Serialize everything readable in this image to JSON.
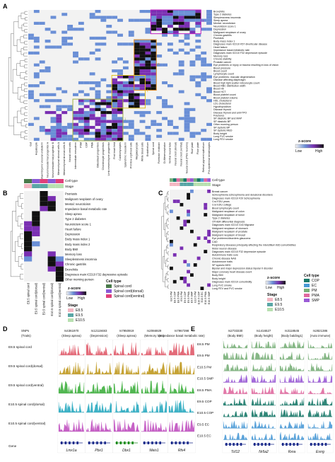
{
  "panels": {
    "A": {
      "letter": "A",
      "columns": [
        "Gut",
        "Hepatocyte",
        "Extraembryonic visceral endoderm",
        "Neuromesodermal progenitor A",
        "Neuromesodermal progenitor B",
        "Mesenchymal stromal cells A",
        "Mesenchymal stromal cells B",
        "Neural crest cells",
        "Intermediate mesoderm",
        "PSM",
        "COP",
        "PMA",
        "Osteoblast progenitors",
        "Chondrocyte progenitors",
        "Limb mesenchyme progenitor",
        "First heart field",
        "Cardiomyocytes",
        "Splanchnic mesoderm",
        "Primitive erythroid cells",
        "Megakaryocyte",
        "White blood cells",
        "Endothelium",
        "Spinal cord",
        "Forebrain midbrain",
        "Di-Mesencephalon",
        "Ventral neural tube",
        "Neural crest (dorsal)",
        "Neural crest (ventral)",
        "Neural crest (PNS neurons)",
        "Roof plate",
        "Floor plate",
        "Retinal pigment epithelium",
        "Pre-epidermal keratinocytes"
      ],
      "rows": [
        "Bronchitis",
        "Type 2 diabetes",
        "Sleeplessness insomnia",
        "Sleep apnea",
        "Mental: neuroticism",
        "Neuroticism score 1",
        "Depression",
        "Malignant neoplasm of ovary",
        "Chronic gastritis",
        "Psoriasis",
        "Body mass index 1",
        "Diagnoses main ICD10 K57 diverticular disease",
        "Heart failure",
        "Impedance basal metabolic rate",
        "Diagnoses main ICD10 F32 depressive episode",
        "Memory loss",
        "Chronic stability",
        "Prostate cancer",
        "Eye problems or injury or trauma resulting in loss of vision",
        "Blood pressure",
        "Blood count",
        "Lymphocyte count",
        "Eye problems: macular degeneration",
        "Disease affecting diaphragm",
        "Blood high light scatter reticulocyte count",
        "Blood RBC distribution width",
        "Blood Hb",
        "Blood HCT",
        "Blood platelet count",
        "Blood platelet volume",
        "HDL cholesterol",
        "LDL cholesterol",
        "Hypothyroidism",
        "Disease thyroid",
        "Disease thyroid and anti-TPO",
        "Fractures",
        "SP diastolic BP and MAP",
        "SP diastolic BP",
        "Other morning person",
        "SP systolic BP",
        "SP systolic MED",
        "Body height",
        "Lung FVC smoke",
        "Lung FEV smoke"
      ],
      "box_labels": [
        "4",
        "3",
        "2",
        "1"
      ],
      "legend": {
        "title": "z-score",
        "low": "Low",
        "high": "High"
      }
    },
    "B": {
      "letter": "B",
      "annot_labels": [
        "Cell type",
        "Stage"
      ],
      "rows": [
        "Psoriasis",
        "Malignant neoplasm of ovary",
        "Mental: neuroticism",
        "Impedance basal metabolic rate",
        "Sleep apnea",
        "Type 2 diabetes",
        "Neuroticism score 1",
        "Heart failure",
        "Depression",
        "Body mass index 1",
        "Body mass index 2",
        "Body BMI",
        "Memory loss",
        "Sleeplessness insomnia",
        "Chronic gastritis",
        "Bronchitis",
        "Diagnoses main ICD10 F32 depressive episode",
        "Other morning person"
      ],
      "columns": [
        "E8.5 spinal cord",
        "E9.5 spinal cord(dorsal)",
        "E9.5 spinal cord(ventral)",
        "E10.5 spinal cord(dorsal)",
        "E10.5 spinal cord(ventral)"
      ],
      "legend": {
        "zscore": "z-score",
        "low": "Low",
        "high": "High",
        "stage_title": "Stage",
        "stages": [
          "E8.5",
          "E9.5",
          "E10.5"
        ],
        "celltype_title": "Cell type",
        "celltypes": [
          "Spinal cord",
          "Spinal cord(dorsal)",
          "Spinal cord(ventral)"
        ]
      }
    },
    "C": {
      "letter": "C",
      "annot_labels": [
        "Cell type",
        "Stage"
      ],
      "rows": [
        "Breast cancer",
        "Schizophrenia schizophrenia and delusional disorders",
        "Diagnoses main ICD10 F20 Schizophrenia",
        "Cov EDU years",
        "Cov EDU college",
        "Blood lymphocyte count",
        "Malignant neoplasm of colon",
        "Malignant neoplasm of tonsil",
        "Type 2 diabetes",
        "OTHER differential diagnosis",
        "Diagnoses main ICD10 G43 Migraine",
        "Malignant neoplasm of stomach",
        "Malignant neoplasm of prostate",
        "Malignant neoplasm of breast",
        "Eye problems/disorders glaucoma",
        "CAD",
        "Respiratory diseases principally affecting the interstitium IBD comorbidities",
        "Motor neuron disease",
        "Diagnoses main ICD10 F32 depressive episode",
        "Autoimmune traits sure",
        "Chronic disease NAS",
        "Autoimmune traits",
        "SP systolic MED",
        "Bipolar and major depression status bipolar II disorder",
        "Major coronary heart disease event",
        "Body BMI",
        "Body height",
        "Diagnoses main ICD10 comorbidity",
        "Lung FVC smoke",
        "Lung FEV and FVC smoke"
      ],
      "columns": [
        "E8.5 PM",
        "E8.5 COP",
        "E8.5 PMA",
        "E9.5 PM",
        "E9.5 COP",
        "E9.5 PMA",
        "E9.5 SMP",
        "E10.5 PM",
        "E10.5 COP",
        "E10.5 EC",
        "E10.5 PMA",
        "E10.5 SMP"
      ],
      "legend": {
        "zscore": "z-score",
        "low": "Low",
        "high": "High",
        "stage_title": "Stage",
        "stages": [
          "E8.5",
          "E9.5",
          "E10.5"
        ],
        "celltype_title": "Cell type",
        "celltypes": [
          "COP",
          "EC",
          "PM",
          "PMA",
          "SMP"
        ]
      }
    },
    "D": {
      "letter": "D",
      "header_left": "SNPs",
      "header_left2": "(Traits)",
      "snps": [
        {
          "id": "rs4361970",
          "trait": "(Sleep apnea)"
        },
        {
          "id": "rs12119483",
          "trait": "(Depression)"
        },
        {
          "id": "rs7950919",
          "trait": "(Sleep apnea)"
        },
        {
          "id": "rs2066929",
          "trait": "(Memory loss)"
        },
        {
          "id": "rs7967398",
          "trait": "(Impedance basal metabolic rate)"
        }
      ],
      "tracks": [
        "E8.5 spinal cord",
        "E9.5 spinal cord(dorsal)",
        "E9.5 spinal cord(ventral)",
        "E10.5 spinal cord(dorsal)",
        "E10.5 spinal cord(ventral)"
      ],
      "gene_label": "Gene",
      "genes": [
        "Lmx1a",
        "Pbx1",
        "Dbx1",
        "Meis1",
        "Rfx4"
      ]
    },
    "E": {
      "letter": "E",
      "snps": [
        {
          "id": "rs2733330",
          "trait": "(Body BMI)"
        },
        {
          "id": "rs1416527",
          "trait": "(Body height)"
        },
        {
          "id": "rs3118545",
          "trait": "(Body balding1)"
        },
        {
          "id": "rs2821386",
          "trait": "(Auto immune)"
        }
      ],
      "tracks": [
        "E8.5 PM",
        "E9.5 PM",
        "E10.5 PM",
        "E10.5 SMP",
        "E8.5 PMA",
        "E9.5 COP",
        "E10.5 COP",
        "E9.5 EC",
        "E10.5 EC"
      ],
      "genes": [
        "Tcf12",
        "Nr5a2",
        "Rxra",
        "Esrrg"
      ]
    }
  },
  "colors": {
    "heat_low": "#f2f2f2",
    "heat_blue": "#6a8fd6",
    "heat_purple": "#7a2fb2",
    "heat_high": "#111111",
    "box4": "#c020c0",
    "box3": "#e08a20",
    "box2": "#e0c020",
    "box1": "#a0b040",
    "stage_e85": "#f4b6c2",
    "stage_e95": "#5aa6a6",
    "stage_e105": "#b8e0b0",
    "ct_sc": "#4a7a4a",
    "ct_scd": "#8a5ad6",
    "ct_scv": "#e0407a",
    "ct_cop": "#1a7a6a",
    "ct_ec": "#4a9ad6",
    "ct_pm": "#7ab07a",
    "ct_pma": "#e06aa0",
    "ct_smp": "#9a5ad6",
    "track_e85": "#e05a6a",
    "track_e95d": "#c09a20",
    "track_e95v": "#40b040",
    "track_e105d": "#2aaac0",
    "track_e105v": "#c050c0",
    "gene": "#1a2a8a",
    "gene_dbx1": "#1a8a1a"
  }
}
